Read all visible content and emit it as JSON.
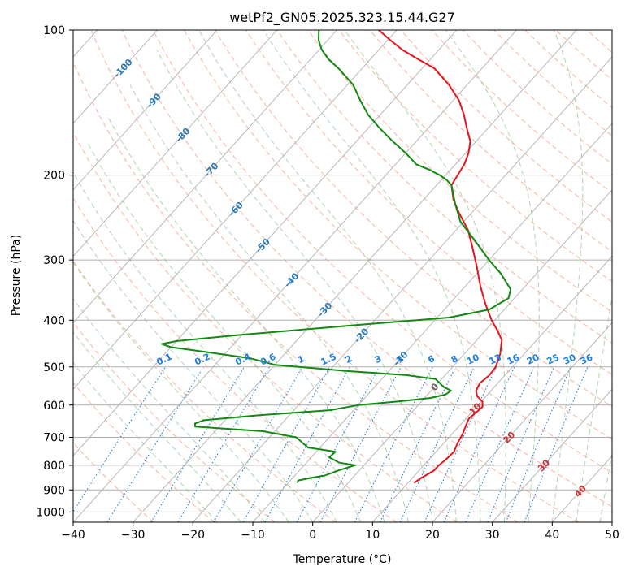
{
  "chart_data": {
    "type": "skew-t",
    "title": "wetPf2_GN05.2025.323.15.44.G27",
    "xlabel": "Temperature (°C)",
    "ylabel": "Pressure (hPa)",
    "xlim": [
      -40,
      50
    ],
    "ylim": [
      1050,
      100
    ],
    "y_scale": "log",
    "grid": true,
    "x_ticks": [
      "−40",
      "−30",
      "−20",
      "−10",
      "0",
      "10",
      "20",
      "30",
      "40",
      "50"
    ],
    "y_ticks": [
      "100",
      "200",
      "300",
      "400",
      "500",
      "600",
      "700",
      "800",
      "900",
      "1000"
    ],
    "colors": {
      "temperature": "#e8141c",
      "dewpoint": "#118a11",
      "isotherm": "#b0b0b0",
      "dry_adiabat": "#f59a80",
      "moist_adiabat": "#9ccf9c",
      "mixing_ratio": "#1e7fe0",
      "label_blue": "#2a7ab8",
      "label_red": "#d03030"
    },
    "isotherm_labels": [
      "-100",
      "-90",
      "-80",
      "-70",
      "-60",
      "-50",
      "-40",
      "-30",
      "-20",
      "-10",
      "0",
      "10",
      "20",
      "30",
      "40"
    ],
    "mixing_ratio_labels": [
      "0.1",
      "0.2",
      "0.4",
      "0.6",
      "1",
      "1.5",
      "2",
      "3",
      "4",
      "6",
      "8",
      "10",
      "13",
      "16",
      "20",
      "25",
      "30",
      "36"
    ],
    "series": [
      {
        "key": "temperature",
        "points": [
          [
            870,
            11.0
          ],
          [
            850,
            11.5
          ],
          [
            820,
            12.5
          ],
          [
            800,
            12.5
          ],
          [
            780,
            12.8
          ],
          [
            750,
            13.0
          ],
          [
            720,
            12.3
          ],
          [
            690,
            11.8
          ],
          [
            660,
            11.0
          ],
          [
            640,
            10.5
          ],
          [
            620,
            10.8
          ],
          [
            605,
            11.0
          ],
          [
            590,
            10.2
          ],
          [
            575,
            8.5
          ],
          [
            560,
            7.5
          ],
          [
            540,
            7.0
          ],
          [
            520,
            7.4
          ],
          [
            500,
            7.2
          ],
          [
            470,
            6.0
          ],
          [
            440,
            4.2
          ],
          [
            420,
            2.0
          ],
          [
            400,
            -0.5
          ],
          [
            370,
            -4.0
          ],
          [
            340,
            -7.5
          ],
          [
            310,
            -11.0
          ],
          [
            280,
            -15.0
          ],
          [
            260,
            -18.0
          ],
          [
            240,
            -22.0
          ],
          [
            225,
            -25.0
          ],
          [
            210,
            -27.5
          ],
          [
            200,
            -28.0
          ],
          [
            190,
            -28.5
          ],
          [
            180,
            -29.5
          ],
          [
            170,
            -31.0
          ],
          [
            160,
            -33.5
          ],
          [
            150,
            -36.0
          ],
          [
            140,
            -39.0
          ],
          [
            130,
            -43.0
          ],
          [
            120,
            -48.0
          ],
          [
            115,
            -52.0
          ],
          [
            110,
            -56.0
          ],
          [
            105,
            -59.5
          ],
          [
            100,
            -63.0
          ]
        ]
      },
      {
        "key": "dewpoint",
        "points": [
          [
            870,
            -8.5
          ],
          [
            860,
            -8.7
          ],
          [
            850,
            -7.0
          ],
          [
            840,
            -5.0
          ],
          [
            820,
            -3.5
          ],
          [
            800,
            -1.5
          ],
          [
            790,
            -4.5
          ],
          [
            770,
            -7.0
          ],
          [
            750,
            -6.8
          ],
          [
            735,
            -12.0
          ],
          [
            720,
            -13.5
          ],
          [
            700,
            -15.5
          ],
          [
            680,
            -22.0
          ],
          [
            665,
            -34.0
          ],
          [
            655,
            -34.5
          ],
          [
            645,
            -33.5
          ],
          [
            630,
            -25.0
          ],
          [
            615,
            -14.0
          ],
          [
            600,
            -10.0
          ],
          [
            590,
            -4.0
          ],
          [
            580,
            1.0
          ],
          [
            570,
            3.0
          ],
          [
            560,
            3.3
          ],
          [
            550,
            1.5
          ],
          [
            530,
            -1.0
          ],
          [
            520,
            -6.5
          ],
          [
            510,
            -17.0
          ],
          [
            495,
            -30.0
          ],
          [
            480,
            -35.0
          ],
          [
            468,
            -42.0
          ],
          [
            455,
            -50.0
          ],
          [
            448,
            -52.0
          ],
          [
            442,
            -50.0
          ],
          [
            430,
            -41.0
          ],
          [
            410,
            -23.0
          ],
          [
            395,
            -8.0
          ],
          [
            380,
            -2.5
          ],
          [
            360,
            -1.0
          ],
          [
            345,
            -2.0
          ],
          [
            320,
            -6.0
          ],
          [
            300,
            -10.0
          ],
          [
            270,
            -16.0
          ],
          [
            250,
            -20.5
          ],
          [
            230,
            -24.0
          ],
          [
            210,
            -27.5
          ],
          [
            205,
            -29.0
          ],
          [
            200,
            -31.0
          ],
          [
            195,
            -33.5
          ],
          [
            190,
            -36.5
          ],
          [
            180,
            -40.0
          ],
          [
            170,
            -44.0
          ],
          [
            160,
            -48.0
          ],
          [
            150,
            -52.0
          ],
          [
            140,
            -55.5
          ],
          [
            130,
            -59.0
          ],
          [
            120,
            -64.0
          ],
          [
            115,
            -67.0
          ],
          [
            110,
            -69.5
          ],
          [
            105,
            -71.5
          ],
          [
            100,
            -73.0
          ]
        ]
      }
    ]
  }
}
